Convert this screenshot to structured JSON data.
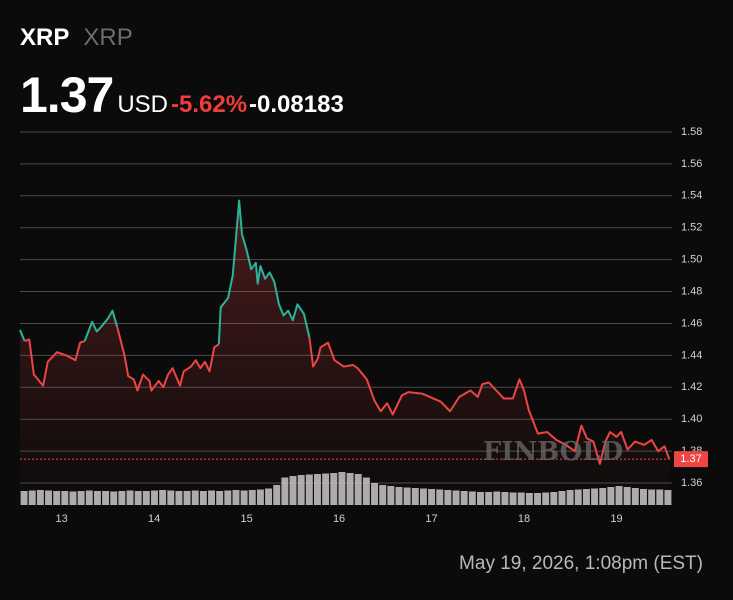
{
  "header": {
    "symbol": "XRP",
    "name": "XRP",
    "price": 1.37,
    "unit": "USD",
    "change_percent": "-5.62%",
    "change": -0.08183
  },
  "footer": {
    "timestamp": "May 19, 2026, 1:08pm (EST)"
  },
  "watermark": "FINBOLD",
  "chart_data": {
    "type": "line",
    "x": [
      12.55,
      12.6,
      12.65,
      12.7,
      12.8,
      12.85,
      12.95,
      13.05,
      13.15,
      13.2,
      13.25,
      13.33,
      13.38,
      13.43,
      13.5,
      13.55,
      13.6,
      13.68,
      13.72,
      13.78,
      13.82,
      13.88,
      13.95,
      13.97,
      14.05,
      14.1,
      14.15,
      14.2,
      14.28,
      14.32,
      14.4,
      14.45,
      14.5,
      14.55,
      14.6,
      14.65,
      14.7,
      14.72,
      14.8,
      14.85,
      14.92,
      14.95,
      15.0,
      15.05,
      15.1,
      15.12,
      15.15,
      15.2,
      15.25,
      15.3,
      15.35,
      15.4,
      15.45,
      15.5,
      15.55,
      15.62,
      15.68,
      15.72,
      15.77,
      15.8,
      15.88,
      15.95,
      16.05,
      16.15,
      16.2,
      16.3,
      16.38,
      16.45,
      16.52,
      16.58,
      16.68,
      16.75,
      16.9,
      17.1,
      17.2,
      17.3,
      17.42,
      17.5,
      17.55,
      17.62,
      17.7,
      17.78,
      17.88,
      17.95,
      18.0,
      18.05,
      18.15,
      18.25,
      18.35,
      18.45,
      18.55,
      18.62,
      18.68,
      18.75,
      18.82,
      18.88,
      18.93,
      19.0,
      19.05,
      19.12,
      19.2,
      19.3,
      19.38,
      19.45,
      19.52,
      19.57
    ],
    "series": [
      {
        "name": "XRP",
        "colors": {
          "up": "#2bb39a",
          "down": "#ef4444"
        },
        "values": [
          1.456,
          1.449,
          1.45,
          1.428,
          1.421,
          1.436,
          1.442,
          1.44,
          1.437,
          1.448,
          1.449,
          1.461,
          1.455,
          1.458,
          1.463,
          1.468,
          1.458,
          1.44,
          1.427,
          1.425,
          1.418,
          1.428,
          1.424,
          1.418,
          1.424,
          1.42,
          1.428,
          1.432,
          1.421,
          1.43,
          1.433,
          1.437,
          1.432,
          1.436,
          1.43,
          1.445,
          1.447,
          1.47,
          1.476,
          1.49,
          1.537,
          1.516,
          1.506,
          1.494,
          1.498,
          1.485,
          1.496,
          1.488,
          1.492,
          1.486,
          1.472,
          1.465,
          1.468,
          1.462,
          1.472,
          1.466,
          1.451,
          1.433,
          1.438,
          1.445,
          1.448,
          1.437,
          1.433,
          1.434,
          1.432,
          1.425,
          1.412,
          1.405,
          1.41,
          1.403,
          1.415,
          1.417,
          1.416,
          1.411,
          1.405,
          1.414,
          1.418,
          1.414,
          1.422,
          1.423,
          1.418,
          1.413,
          1.413,
          1.425,
          1.418,
          1.406,
          1.391,
          1.392,
          1.387,
          1.384,
          1.38,
          1.396,
          1.388,
          1.386,
          1.372,
          1.386,
          1.392,
          1.389,
          1.392,
          1.381,
          1.386,
          1.384,
          1.387,
          1.38,
          1.383,
          1.375
        ]
      }
    ],
    "volume": {
      "color": "#c9c9c9",
      "ylim": [
        0,
        100
      ],
      "values": [
        28,
        29,
        30,
        29,
        28,
        28,
        27,
        28,
        29,
        28,
        28,
        27,
        28,
        29,
        28,
        28,
        29,
        30,
        29,
        28,
        28,
        29,
        28,
        29,
        28,
        29,
        30,
        29,
        30,
        31,
        33,
        40,
        55,
        58,
        60,
        61,
        62,
        63,
        64,
        66,
        64,
        62,
        55,
        44,
        40,
        38,
        36,
        35,
        34,
        33,
        32,
        31,
        30,
        29,
        28,
        27,
        26,
        26,
        27,
        26,
        25,
        25,
        24,
        24,
        25,
        26,
        28,
        30,
        31,
        32,
        33,
        34,
        36,
        38,
        36,
        34,
        32,
        31,
        31,
        30
      ]
    },
    "xlim": [
      12.55,
      19.6
    ],
    "xticks": [
      13,
      14,
      15,
      16,
      17,
      18,
      19
    ],
    "ylim": [
      1.345,
      1.59
    ],
    "yticks": [
      1.36,
      {
        "value": 1.38,
        "label": "1.38"
      },
      {
        "value": 1.4,
        "label": "1.40"
      },
      1.42,
      1.44,
      1.46,
      1.48,
      {
        "value": 1.5,
        "label": "1.50"
      },
      1.52,
      1.54,
      1.56,
      1.58
    ],
    "grid": true
  }
}
